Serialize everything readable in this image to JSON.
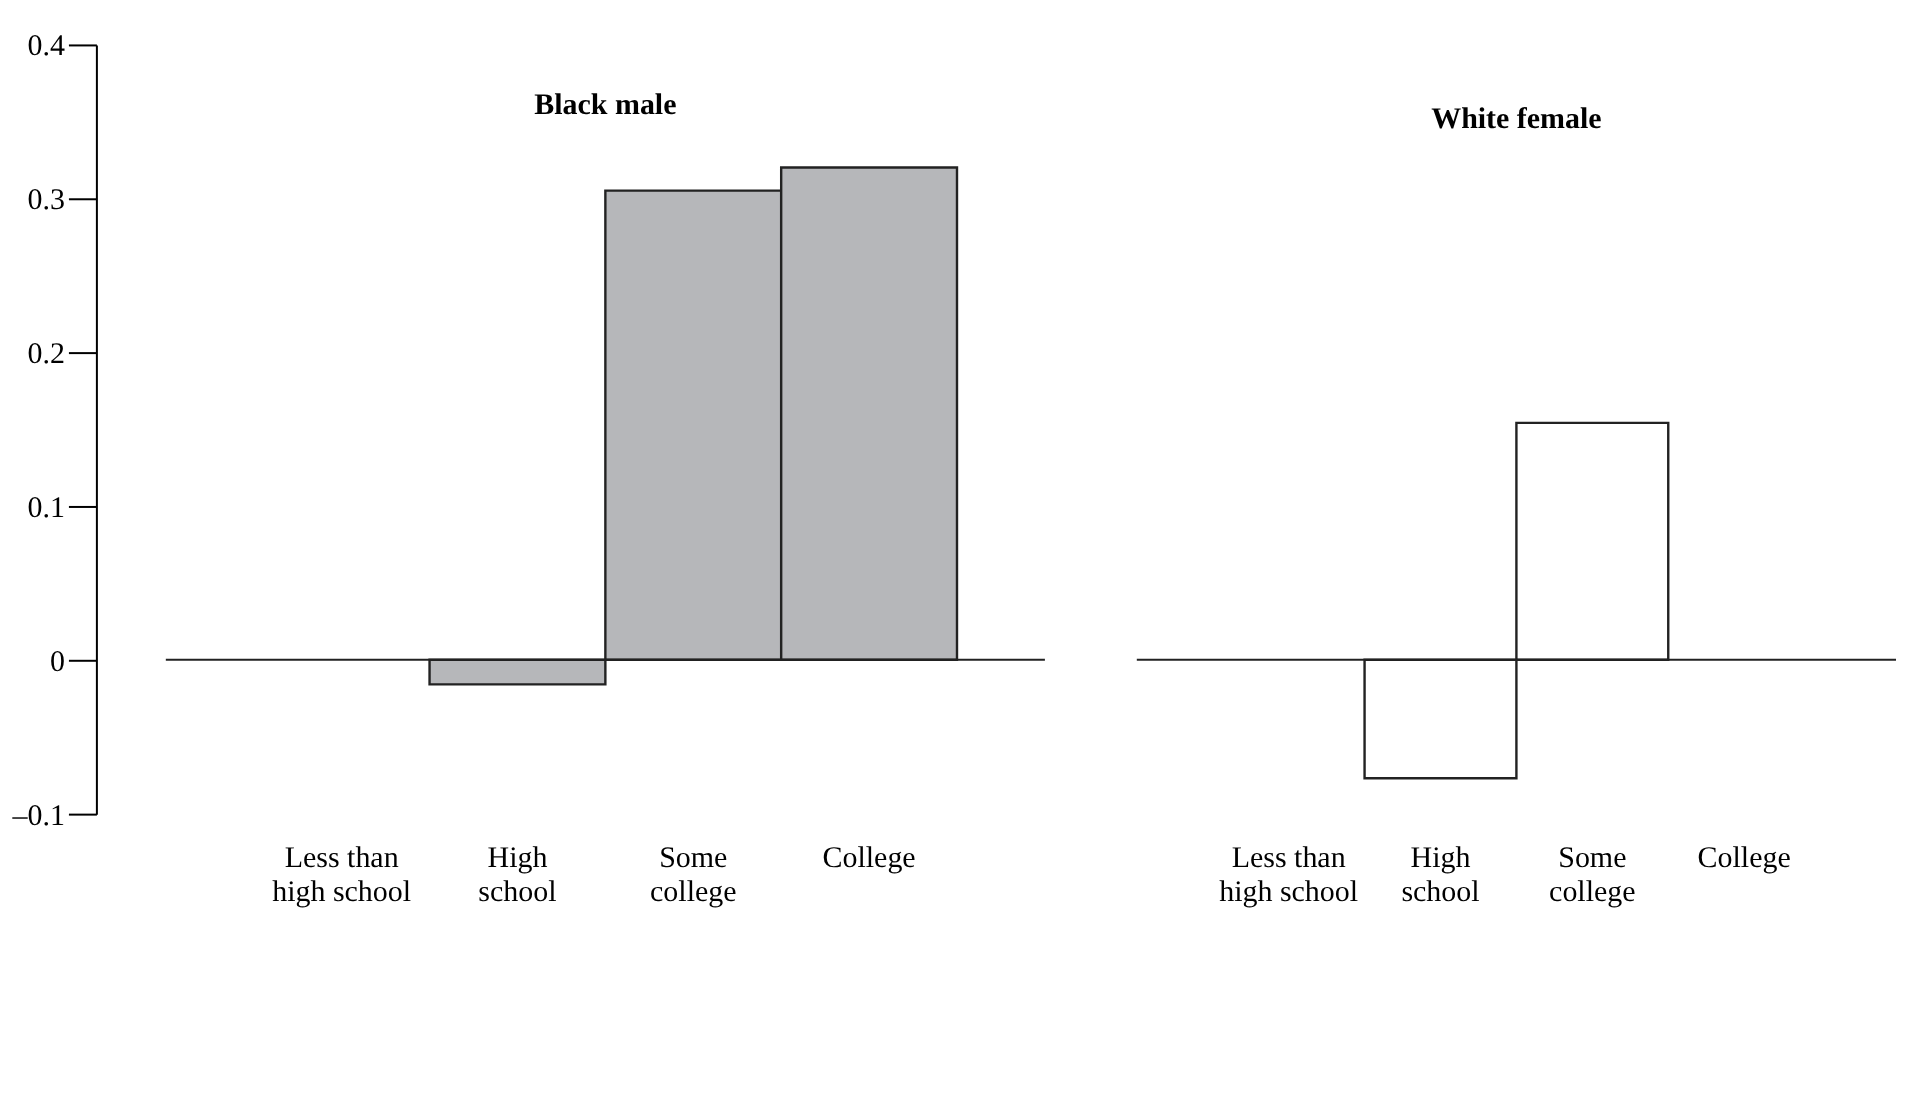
{
  "chart_data": [
    {
      "type": "bar",
      "title": "Black male",
      "categories": [
        "Less than\nhigh school",
        "High\nschool",
        "Some\ncollege",
        "College"
      ],
      "values": [
        0,
        -0.016,
        0.305,
        0.32
      ],
      "color": "#b6b7ba",
      "ylim": [
        -0.1,
        0.4
      ],
      "yticks": [
        {
          "value": -0.1,
          "label": "–0.1"
        },
        0,
        0.1,
        0.2,
        0.3,
        0.4
      ],
      "grid": false,
      "ref_lines": [
        {
          "axis": "y",
          "value": 0
        }
      ]
    },
    {
      "type": "bar",
      "title": "White female",
      "categories": [
        "Less than\nhigh school",
        "High\nschool",
        "Some\ncollege",
        "College"
      ],
      "values": [
        0,
        -0.077,
        0.154,
        0
      ],
      "color": "#ffffff",
      "ylim": [
        -0.1,
        0.4
      ],
      "grid": false,
      "tick_labels": "x",
      "ref_lines": [
        {
          "axis": "y",
          "value": 0
        }
      ]
    }
  ]
}
